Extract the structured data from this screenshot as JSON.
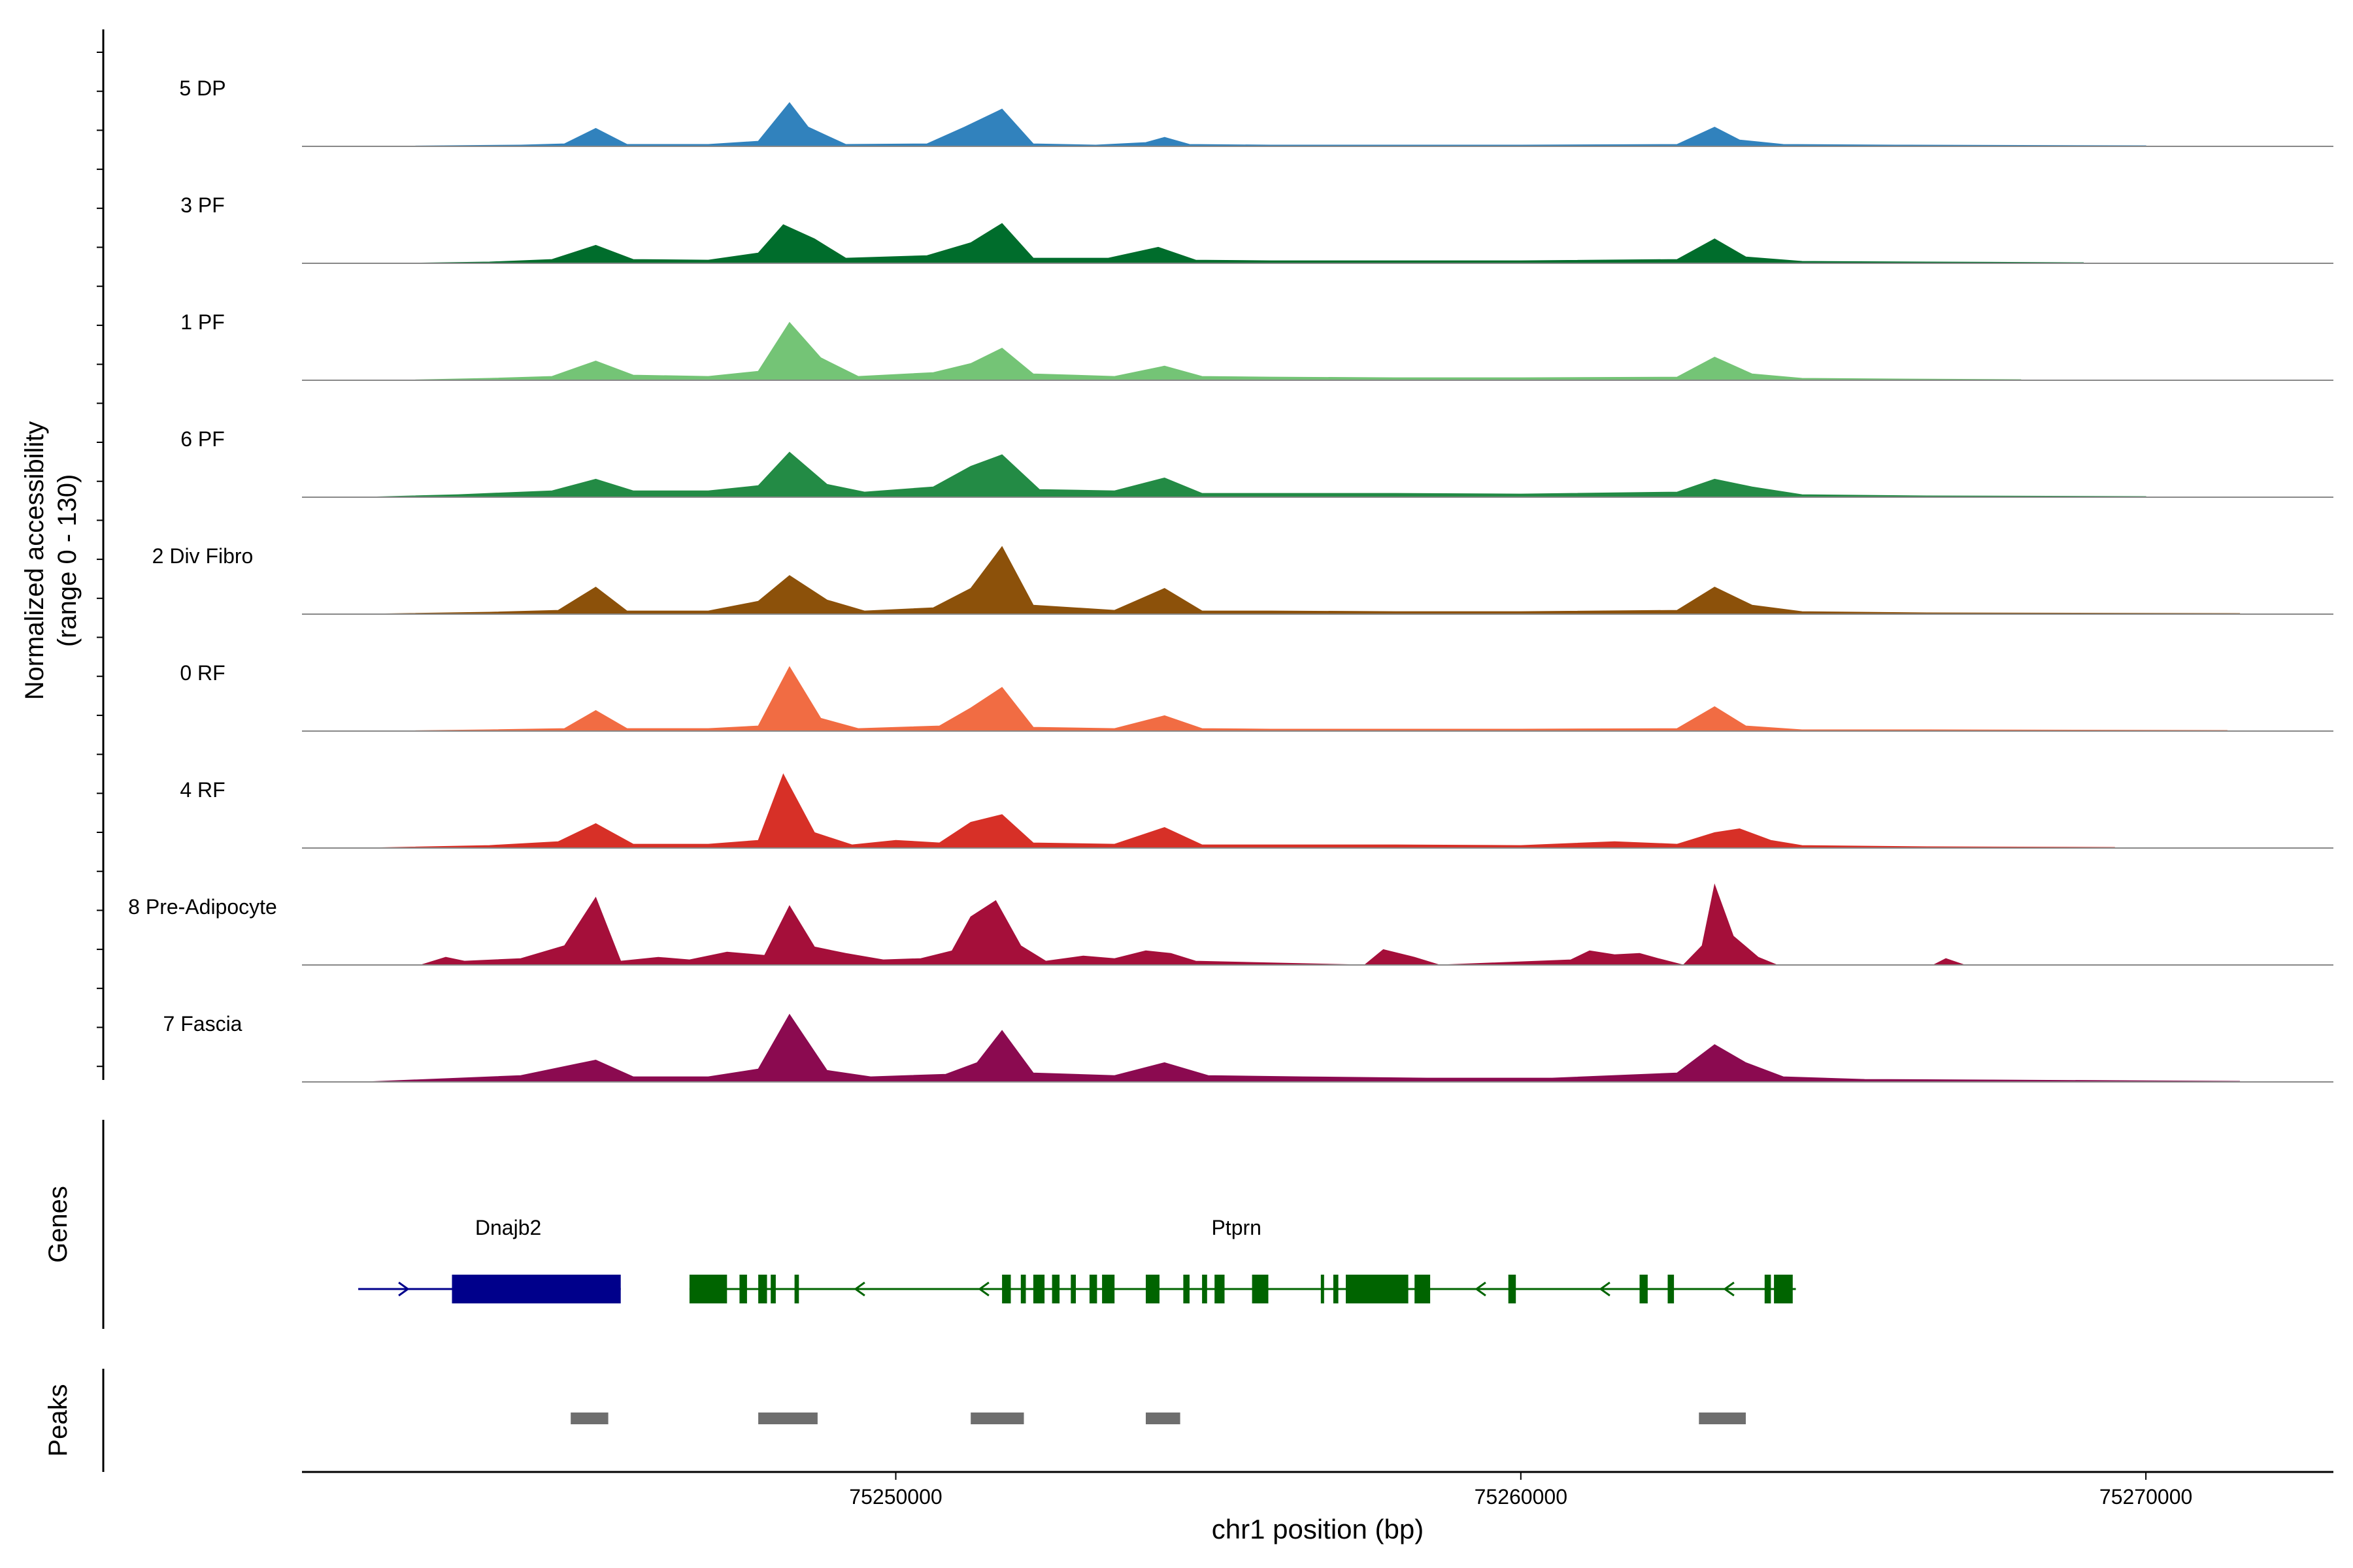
{
  "chart_data": {
    "type": "area",
    "y_axis_title": "Normalized accessibility",
    "y_axis_subtitle": "(range 0 - 130)",
    "ylim": [
      0,
      130
    ],
    "x_axis_title": "chr1 position (bp)",
    "xlim": [
      75240500,
      75273000
    ],
    "x_ticks": [
      {
        "value": 75250000,
        "label": "75250000"
      },
      {
        "value": 75260000,
        "label": "75260000"
      },
      {
        "value": 75270000,
        "label": "75270000"
      }
    ],
    "series": [
      {
        "name": "5 DP",
        "color": "#3182bd",
        "points": [
          [
            75241500,
            0
          ],
          [
            75244000,
            2
          ],
          [
            75244700,
            4
          ],
          [
            75245200,
            28
          ],
          [
            75245700,
            3
          ],
          [
            75247000,
            3
          ],
          [
            75247800,
            8
          ],
          [
            75248300,
            68
          ],
          [
            75248600,
            30
          ],
          [
            75249200,
            3
          ],
          [
            75250500,
            4
          ],
          [
            75251100,
            30
          ],
          [
            75251700,
            58
          ],
          [
            75252200,
            4
          ],
          [
            75253200,
            2
          ],
          [
            75254000,
            6
          ],
          [
            75254300,
            14
          ],
          [
            75254700,
            3
          ],
          [
            75256000,
            2
          ],
          [
            75258000,
            2
          ],
          [
            75260000,
            2
          ],
          [
            75262500,
            3
          ],
          [
            75263100,
            30
          ],
          [
            75263500,
            10
          ],
          [
            75264200,
            3
          ],
          [
            75266000,
            2
          ],
          [
            75270000,
            1
          ]
        ]
      },
      {
        "name": "3 PF",
        "color": "#006d2c",
        "points": [
          [
            75242000,
            0
          ],
          [
            75243500,
            2
          ],
          [
            75244500,
            6
          ],
          [
            75245200,
            28
          ],
          [
            75245800,
            6
          ],
          [
            75247000,
            5
          ],
          [
            75247800,
            16
          ],
          [
            75248200,
            60
          ],
          [
            75248700,
            38
          ],
          [
            75249200,
            8
          ],
          [
            75250500,
            12
          ],
          [
            75251200,
            32
          ],
          [
            75251700,
            62
          ],
          [
            75252200,
            8
          ],
          [
            75253400,
            8
          ],
          [
            75254200,
            25
          ],
          [
            75254800,
            5
          ],
          [
            75256000,
            4
          ],
          [
            75258000,
            4
          ],
          [
            75260000,
            4
          ],
          [
            75262500,
            6
          ],
          [
            75263100,
            38
          ],
          [
            75263600,
            10
          ],
          [
            75264500,
            3
          ],
          [
            75266500,
            2
          ],
          [
            75269000,
            1
          ]
        ]
      },
      {
        "name": "1 PF",
        "color": "#74c476",
        "points": [
          [
            75242000,
            0
          ],
          [
            75243500,
            3
          ],
          [
            75244500,
            6
          ],
          [
            75245200,
            30
          ],
          [
            75245800,
            8
          ],
          [
            75247000,
            6
          ],
          [
            75247800,
            14
          ],
          [
            75248300,
            90
          ],
          [
            75248800,
            35
          ],
          [
            75249400,
            6
          ],
          [
            75250600,
            12
          ],
          [
            75251200,
            26
          ],
          [
            75251700,
            50
          ],
          [
            75252200,
            10
          ],
          [
            75253500,
            6
          ],
          [
            75254300,
            22
          ],
          [
            75254900,
            6
          ],
          [
            75256000,
            5
          ],
          [
            75258000,
            4
          ],
          [
            75260000,
            4
          ],
          [
            75262500,
            5
          ],
          [
            75263100,
            36
          ],
          [
            75263700,
            10
          ],
          [
            75264500,
            3
          ],
          [
            75266000,
            2
          ],
          [
            75268000,
            1
          ]
        ]
      },
      {
        "name": "6 PF",
        "color": "#238b45",
        "points": [
          [
            75241500,
            0
          ],
          [
            75243000,
            4
          ],
          [
            75244500,
            10
          ],
          [
            75245200,
            28
          ],
          [
            75245800,
            10
          ],
          [
            75247000,
            10
          ],
          [
            75247800,
            18
          ],
          [
            75248300,
            70
          ],
          [
            75248900,
            20
          ],
          [
            75249500,
            8
          ],
          [
            75250600,
            16
          ],
          [
            75251200,
            48
          ],
          [
            75251700,
            66
          ],
          [
            75252300,
            12
          ],
          [
            75253500,
            10
          ],
          [
            75254300,
            30
          ],
          [
            75254900,
            6
          ],
          [
            75256000,
            6
          ],
          [
            75258000,
            6
          ],
          [
            75260000,
            5
          ],
          [
            75262500,
            8
          ],
          [
            75263100,
            28
          ],
          [
            75263700,
            16
          ],
          [
            75264500,
            4
          ],
          [
            75266500,
            2
          ],
          [
            75270000,
            1
          ]
        ]
      },
      {
        "name": "2 Div Fibro",
        "color": "#8c510a",
        "points": [
          [
            75241500,
            0
          ],
          [
            75243500,
            3
          ],
          [
            75244600,
            6
          ],
          [
            75245200,
            42
          ],
          [
            75245700,
            5
          ],
          [
            75247000,
            5
          ],
          [
            75247800,
            20
          ],
          [
            75248300,
            60
          ],
          [
            75248900,
            22
          ],
          [
            75249500,
            5
          ],
          [
            75250600,
            10
          ],
          [
            75251200,
            40
          ],
          [
            75251700,
            105
          ],
          [
            75252200,
            14
          ],
          [
            75253500,
            6
          ],
          [
            75254300,
            40
          ],
          [
            75254900,
            5
          ],
          [
            75256000,
            5
          ],
          [
            75258000,
            4
          ],
          [
            75260000,
            4
          ],
          [
            75262500,
            6
          ],
          [
            75263100,
            42
          ],
          [
            75263700,
            14
          ],
          [
            75264500,
            4
          ],
          [
            75266500,
            2
          ],
          [
            75271500,
            1
          ]
        ]
      },
      {
        "name": "0 RF",
        "color": "#f16c43",
        "points": [
          [
            75241800,
            0
          ],
          [
            75243500,
            2
          ],
          [
            75244700,
            4
          ],
          [
            75245200,
            32
          ],
          [
            75245700,
            4
          ],
          [
            75247000,
            4
          ],
          [
            75247800,
            8
          ],
          [
            75248300,
            100
          ],
          [
            75248800,
            20
          ],
          [
            75249400,
            4
          ],
          [
            75250700,
            8
          ],
          [
            75251200,
            36
          ],
          [
            75251700,
            68
          ],
          [
            75252200,
            6
          ],
          [
            75253500,
            4
          ],
          [
            75254300,
            24
          ],
          [
            75254900,
            4
          ],
          [
            75256000,
            3
          ],
          [
            75258000,
            3
          ],
          [
            75260000,
            3
          ],
          [
            75262500,
            4
          ],
          [
            75263100,
            38
          ],
          [
            75263600,
            8
          ],
          [
            75264500,
            2
          ],
          [
            75266500,
            2
          ],
          [
            75271300,
            1
          ]
        ]
      },
      {
        "name": "4 RF",
        "color": "#d73027",
        "points": [
          [
            75241500,
            0
          ],
          [
            75243500,
            4
          ],
          [
            75244600,
            10
          ],
          [
            75245200,
            38
          ],
          [
            75245800,
            6
          ],
          [
            75247000,
            6
          ],
          [
            75247800,
            12
          ],
          [
            75248200,
            115
          ],
          [
            75248700,
            24
          ],
          [
            75249300,
            5
          ],
          [
            75250000,
            12
          ],
          [
            75250700,
            8
          ],
          [
            75251200,
            40
          ],
          [
            75251700,
            52
          ],
          [
            75252200,
            8
          ],
          [
            75253500,
            6
          ],
          [
            75254300,
            32
          ],
          [
            75254900,
            5
          ],
          [
            75256000,
            5
          ],
          [
            75258000,
            5
          ],
          [
            75260000,
            4
          ],
          [
            75261500,
            10
          ],
          [
            75262500,
            6
          ],
          [
            75263100,
            24
          ],
          [
            75263500,
            30
          ],
          [
            75264000,
            12
          ],
          [
            75264500,
            4
          ],
          [
            75266500,
            2
          ],
          [
            75269500,
            1
          ]
        ]
      },
      {
        "name": "8 Pre-Adipocyte",
        "color": "#a50f3a",
        "points": [
          [
            75242400,
            0
          ],
          [
            75242800,
            12
          ],
          [
            75243100,
            6
          ],
          [
            75244000,
            10
          ],
          [
            75244700,
            30
          ],
          [
            75245200,
            105
          ],
          [
            75245600,
            6
          ],
          [
            75246200,
            12
          ],
          [
            75246700,
            8
          ],
          [
            75247300,
            20
          ],
          [
            75247900,
            15
          ],
          [
            75248300,
            92
          ],
          [
            75248700,
            28
          ],
          [
            75249200,
            18
          ],
          [
            75249800,
            8
          ],
          [
            75250400,
            10
          ],
          [
            75250900,
            22
          ],
          [
            75251200,
            75
          ],
          [
            75251600,
            100
          ],
          [
            75252000,
            30
          ],
          [
            75252400,
            6
          ],
          [
            75253000,
            14
          ],
          [
            75253500,
            10
          ],
          [
            75254000,
            22
          ],
          [
            75254400,
            18
          ],
          [
            75254800,
            6
          ],
          [
            75257500,
            0
          ],
          [
            75257800,
            24
          ],
          [
            75258300,
            12
          ],
          [
            75258700,
            0
          ],
          [
            75260800,
            8
          ],
          [
            75261100,
            22
          ],
          [
            75261500,
            16
          ],
          [
            75261900,
            18
          ],
          [
            75262200,
            10
          ],
          [
            75262600,
            0
          ],
          [
            75262900,
            30
          ],
          [
            75263100,
            125
          ],
          [
            75263400,
            45
          ],
          [
            75263800,
            12
          ],
          [
            75264100,
            0
          ],
          [
            75266600,
            0
          ],
          [
            75266800,
            10
          ],
          [
            75267100,
            0
          ]
        ]
      },
      {
        "name": "7 Fascia",
        "color": "#8b0a50",
        "points": [
          [
            75241500,
            0
          ],
          [
            75242500,
            4
          ],
          [
            75244000,
            10
          ],
          [
            75245200,
            34
          ],
          [
            75245800,
            8
          ],
          [
            75247000,
            8
          ],
          [
            75247800,
            20
          ],
          [
            75248300,
            105
          ],
          [
            75248900,
            18
          ],
          [
            75249600,
            8
          ],
          [
            75250800,
            12
          ],
          [
            75251300,
            30
          ],
          [
            75251700,
            80
          ],
          [
            75252200,
            14
          ],
          [
            75253500,
            10
          ],
          [
            75254300,
            30
          ],
          [
            75255000,
            10
          ],
          [
            75256500,
            8
          ],
          [
            75258500,
            6
          ],
          [
            75260500,
            6
          ],
          [
            75262500,
            14
          ],
          [
            75263100,
            58
          ],
          [
            75263600,
            30
          ],
          [
            75264200,
            8
          ],
          [
            75265500,
            4
          ],
          [
            75267500,
            3
          ],
          [
            75271500,
            1
          ]
        ]
      }
    ],
    "genes_track_label": "Genes",
    "genes": [
      {
        "name": "Dnajb2",
        "color": "#00008b",
        "strand": "+",
        "start": 75241400,
        "end": 75245600,
        "exons": [
          [
            75242900,
            75245600
          ]
        ],
        "label_pos": 75243800
      },
      {
        "name": "Ptprn",
        "color": "#006400",
        "strand": "-",
        "start": 75246700,
        "end": 75264400,
        "exons": [
          [
            75246700,
            75247300
          ],
          [
            75247500,
            75247620
          ],
          [
            75247800,
            75247940
          ],
          [
            75248000,
            75248080
          ],
          [
            75248380,
            75248450
          ],
          [
            75251700,
            75251840
          ],
          [
            75252000,
            75252080
          ],
          [
            75252200,
            75252380
          ],
          [
            75252500,
            75252620
          ],
          [
            75252800,
            75252880
          ],
          [
            75253100,
            75253220
          ],
          [
            75253300,
            75253500
          ],
          [
            75254000,
            75254220
          ],
          [
            75254600,
            75254700
          ],
          [
            75254900,
            75254980
          ],
          [
            75255100,
            75255260
          ],
          [
            75255700,
            75255960
          ],
          [
            75256800,
            75256850
          ],
          [
            75257000,
            75257080
          ],
          [
            75257200,
            75258200
          ],
          [
            75258300,
            75258550
          ],
          [
            75259800,
            75259920
          ],
          [
            75261900,
            75262030
          ],
          [
            75262350,
            75262450
          ],
          [
            75263900,
            75264000
          ],
          [
            75264050,
            75264350
          ]
        ],
        "label_pos": 75255450
      }
    ],
    "peaks_track_label": "Peaks",
    "peaks": [
      [
        75244800,
        75245400
      ],
      [
        75247800,
        75248750
      ],
      [
        75251200,
        75252050
      ],
      [
        75254000,
        75254550
      ],
      [
        75262850,
        75263600
      ]
    ]
  }
}
